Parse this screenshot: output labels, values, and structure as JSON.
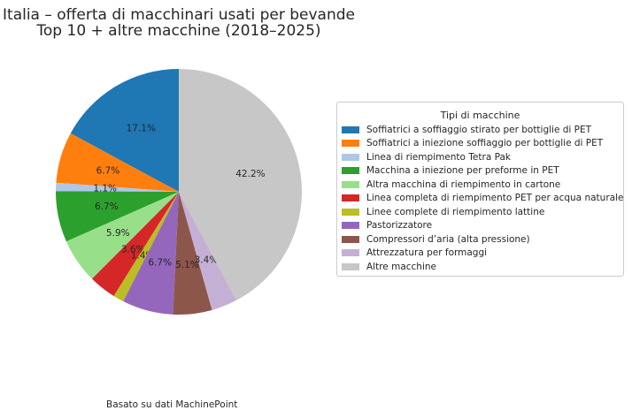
{
  "chart_data": {
    "type": "pie",
    "title": "Italia – offerta di macchinari usati per bevande",
    "subtitle": "Top 10 + altre macchine (2018–2025)",
    "legend_title": "Tipi di macchine",
    "legend_position": "right",
    "start_angle_deg": 90,
    "direction": "counterclockwise",
    "footnote": "Basato su dati MachinePoint",
    "slices": [
      {
        "label": "Soffiatrici a soffiaggio stirato per bottiglie di PET",
        "value": 17.1,
        "pct_label": "17.1%",
        "color": "#1f77b4"
      },
      {
        "label": "Soffiatrici a iniezione soffiaggio per bottiglie di PET",
        "value": 6.7,
        "pct_label": "6.7%",
        "color": "#ff7f0e"
      },
      {
        "label": "Linea di riempimento Tetra Pak",
        "value": 1.1,
        "pct_label": "1.1%",
        "color": "#aec7e8"
      },
      {
        "label": "Macchina a iniezione per preforme in PET",
        "value": 6.7,
        "pct_label": "6.7%",
        "color": "#2ca02c"
      },
      {
        "label": "Altra macchina di riempimento in cartone",
        "value": 5.9,
        "pct_label": "5.9%",
        "color": "#98df8a"
      },
      {
        "label": "Linea completa di riempimento PET per acqua naturale",
        "value": 3.6,
        "pct_label": "3.6%",
        "color": "#d62728"
      },
      {
        "label": "Linee complete di riempimento lattine",
        "value": 1.4,
        "pct_label": "1.4%",
        "color": "#bcbd22"
      },
      {
        "label": "Pastorizzatore",
        "value": 6.7,
        "pct_label": "6.7%",
        "color": "#9467bd"
      },
      {
        "label": "Compressori d’aria (alta pressione)",
        "value": 5.1,
        "pct_label": "5.1%",
        "color": "#8c564b"
      },
      {
        "label": "Attrezzatura per formaggi",
        "value": 3.4,
        "pct_label": "3.4%",
        "color": "#c5b0d5"
      },
      {
        "label": "Altre macchine",
        "value": 42.2,
        "pct_label": "42.2%",
        "color": "#c7c7c7"
      }
    ]
  }
}
